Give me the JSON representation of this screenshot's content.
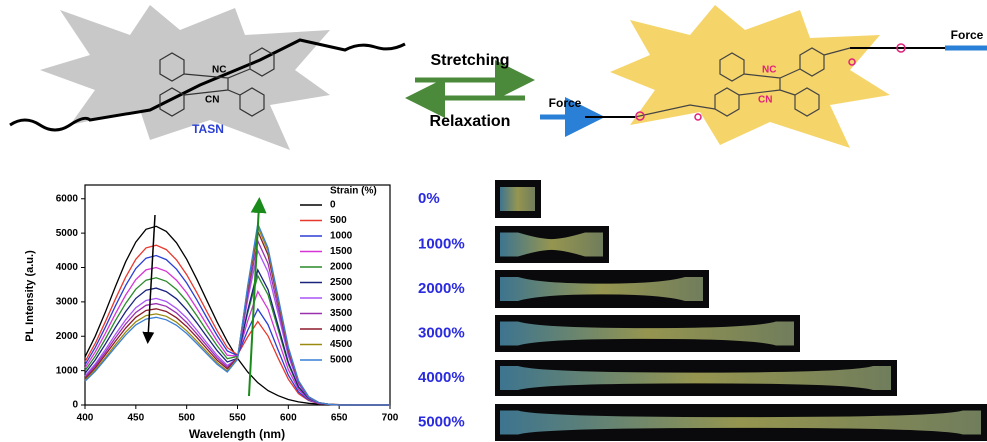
{
  "diagram": {
    "forward": "Stretching",
    "backward": "Relaxation",
    "left_molecule": "TASN",
    "left_groups": [
      "NC",
      "CN"
    ],
    "right_groups": [
      "NC",
      "CN"
    ],
    "force_left": "Force",
    "force_right": "Force"
  },
  "chart_data": {
    "type": "line",
    "xlabel": "Wavelength (nm)",
    "ylabel": "PL Intensity (a.u.)",
    "legend_title": "Strain (%)",
    "legend": "upper right",
    "x": [
      400,
      410,
      420,
      430,
      440,
      450,
      460,
      470,
      480,
      490,
      500,
      510,
      520,
      530,
      540,
      550,
      560,
      570,
      580,
      590,
      600,
      610,
      620,
      630,
      640,
      650,
      660,
      670,
      680,
      690,
      700
    ],
    "xlim": [
      400,
      700
    ],
    "ylim": [
      0,
      6400
    ],
    "xticks": [
      400,
      450,
      500,
      550,
      600,
      650,
      700
    ],
    "yticks": [
      0,
      1000,
      2000,
      3000,
      4000,
      5000,
      6000
    ],
    "series": [
      {
        "name": "0",
        "color": "#000000",
        "values": [
          1400,
          2000,
          2700,
          3450,
          4170,
          4740,
          5110,
          5200,
          5050,
          4720,
          4240,
          3660,
          3030,
          2410,
          1850,
          1360,
          960,
          650,
          420,
          270,
          160,
          90,
          50,
          30,
          20,
          10,
          0,
          0,
          0,
          0,
          0
        ]
      },
      {
        "name": "500",
        "color": "#e8382e",
        "values": [
          1260,
          1790,
          2420,
          3090,
          3720,
          4240,
          4570,
          4650,
          4520,
          4220,
          3790,
          3270,
          2710,
          2160,
          1670,
          1460,
          1980,
          2430,
          2010,
          1360,
          750,
          330,
          130,
          40,
          20,
          10,
          0,
          0,
          0,
          0,
          0
        ]
      },
      {
        "name": "1000",
        "color": "#2b3fd6",
        "values": [
          1170,
          1670,
          2260,
          2890,
          3480,
          3970,
          4270,
          4350,
          4230,
          3950,
          3550,
          3060,
          2530,
          2020,
          1570,
          1440,
          2170,
          2790,
          2340,
          1590,
          870,
          380,
          140,
          50,
          20,
          0,
          0,
          0,
          0,
          0,
          0
        ]
      },
      {
        "name": "1500",
        "color": "#d634d6",
        "values": [
          1080,
          1540,
          2080,
          2660,
          3200,
          3650,
          3930,
          4000,
          3890,
          3630,
          3260,
          2810,
          2330,
          1860,
          1450,
          1420,
          2440,
          3300,
          2790,
          1900,
          1030,
          450,
          160,
          50,
          20,
          0,
          0,
          0,
          0,
          0,
          0
        ]
      },
      {
        "name": "2000",
        "color": "#2a8a2a",
        "values": [
          1000,
          1420,
          1920,
          2460,
          2960,
          3370,
          3630,
          3700,
          3600,
          3360,
          3020,
          2600,
          2150,
          1720,
          1350,
          1410,
          2680,
          3760,
          3210,
          2190,
          1190,
          510,
          180,
          60,
          20,
          0,
          0,
          0,
          0,
          0,
          0
        ]
      },
      {
        "name": "2500",
        "color": "#1a237e",
        "values": [
          920,
          1310,
          1770,
          2260,
          2720,
          3100,
          3340,
          3400,
          3300,
          3090,
          2770,
          2390,
          1980,
          1580,
          1250,
          1360,
          2750,
          3930,
          3360,
          2300,
          1240,
          530,
          190,
          60,
          20,
          0,
          0,
          0,
          0,
          0,
          0
        ]
      },
      {
        "name": "3000",
        "color": "#a855f7",
        "values": [
          840,
          1190,
          1610,
          2060,
          2480,
          2830,
          3040,
          3100,
          3010,
          2810,
          2530,
          2180,
          1800,
          1440,
          1150,
          1360,
          3060,
          4490,
          3870,
          2650,
          1430,
          610,
          210,
          60,
          20,
          0,
          0,
          0,
          0,
          0,
          0
        ]
      },
      {
        "name": "3500",
        "color": "#9b30b0",
        "values": [
          800,
          1140,
          1530,
          1960,
          2360,
          2690,
          2900,
          2950,
          2870,
          2680,
          2400,
          2070,
          1720,
          1370,
          1100,
          1360,
          3210,
          4770,
          4120,
          2820,
          1520,
          650,
          220,
          60,
          20,
          0,
          0,
          0,
          0,
          0,
          0
        ]
      },
      {
        "name": "4000",
        "color": "#8b1a2a",
        "values": [
          760,
          1080,
          1460,
          1860,
          2240,
          2550,
          2750,
          2800,
          2720,
          2540,
          2280,
          1970,
          1630,
          1300,
          1050,
          1370,
          3370,
          5050,
          4370,
          3000,
          1620,
          690,
          240,
          70,
          20,
          0,
          0,
          0,
          0,
          0,
          0
        ]
      },
      {
        "name": "4500",
        "color": "#9a8a10",
        "values": [
          720,
          1020,
          1380,
          1760,
          2120,
          2420,
          2600,
          2650,
          2580,
          2410,
          2160,
          1860,
          1540,
          1230,
          990,
          1350,
          3430,
          5180,
          4490,
          3080,
          1660,
          700,
          240,
          70,
          20,
          0,
          0,
          0,
          0,
          0,
          0
        ]
      },
      {
        "name": "5000",
        "color": "#3a7fd6",
        "values": [
          690,
          980,
          1330,
          1690,
          2040,
          2330,
          2500,
          2550,
          2480,
          2320,
          2080,
          1790,
          1480,
          1180,
          960,
          1330,
          3470,
          5270,
          4570,
          3140,
          1690,
          710,
          240,
          70,
          20,
          0,
          0,
          0,
          0,
          0,
          0
        ]
      }
    ]
  },
  "photos": {
    "labels": [
      "0%",
      "1000%",
      "2000%",
      "3000%",
      "4000%",
      "5000%"
    ]
  }
}
